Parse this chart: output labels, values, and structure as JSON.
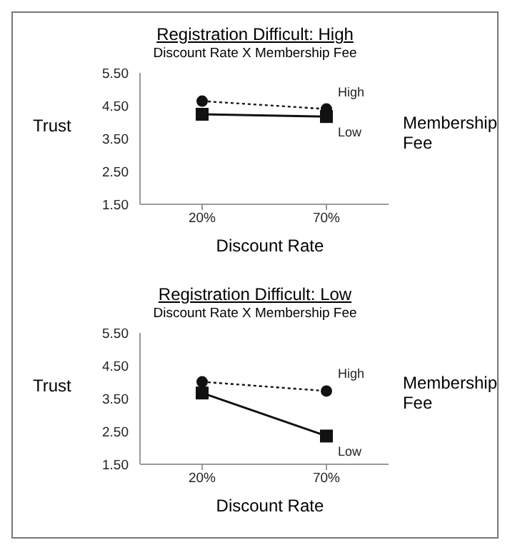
{
  "chart_data": [
    {
      "type": "line",
      "title": "Registration Difficult: High",
      "subtitle": "Discount Rate X Membership Fee",
      "xlabel": "Discount Rate",
      "ylabel": "Trust",
      "legend_title": "Membership Fee",
      "categories": [
        "20%",
        "70%"
      ],
      "series": [
        {
          "name": "High",
          "color": "#111111",
          "values": [
            4.64,
            4.4
          ],
          "marker": "circle",
          "line_style": "dotted"
        },
        {
          "name": "Low",
          "color": "#111111",
          "values": [
            4.24,
            4.17
          ],
          "marker": "square",
          "line_style": "solid"
        }
      ],
      "ylim": [
        1.5,
        5.5
      ],
      "yticks": [
        {
          "value": 1.5,
          "label": "1.50"
        },
        {
          "value": 2.5,
          "label": "2.50"
        },
        {
          "value": 3.5,
          "label": "3.50"
        },
        {
          "value": 4.5,
          "label": "4.50"
        },
        {
          "value": 5.5,
          "label": "5.50"
        }
      ],
      "grid": false
    },
    {
      "type": "line",
      "title": "Registration Difficult: Low",
      "subtitle": "Discount Rate X Membership Fee",
      "xlabel": "Discount Rate",
      "ylabel": "Trust",
      "legend_title": "Membership Fee",
      "categories": [
        "20%",
        "70%"
      ],
      "series": [
        {
          "name": "High",
          "color": "#111111",
          "values": [
            4.01,
            3.73
          ],
          "marker": "circle",
          "line_style": "dotted"
        },
        {
          "name": "Low",
          "color": "#111111",
          "values": [
            3.67,
            2.36
          ],
          "marker": "square",
          "line_style": "solid"
        }
      ],
      "ylim": [
        1.5,
        5.5
      ],
      "yticks": [
        {
          "value": 1.5,
          "label": "1.50"
        },
        {
          "value": 2.5,
          "label": "2.50"
        },
        {
          "value": 3.5,
          "label": "3.50"
        },
        {
          "value": 4.5,
          "label": "4.50"
        },
        {
          "value": 5.5,
          "label": "5.50"
        }
      ],
      "grid": false
    }
  ]
}
